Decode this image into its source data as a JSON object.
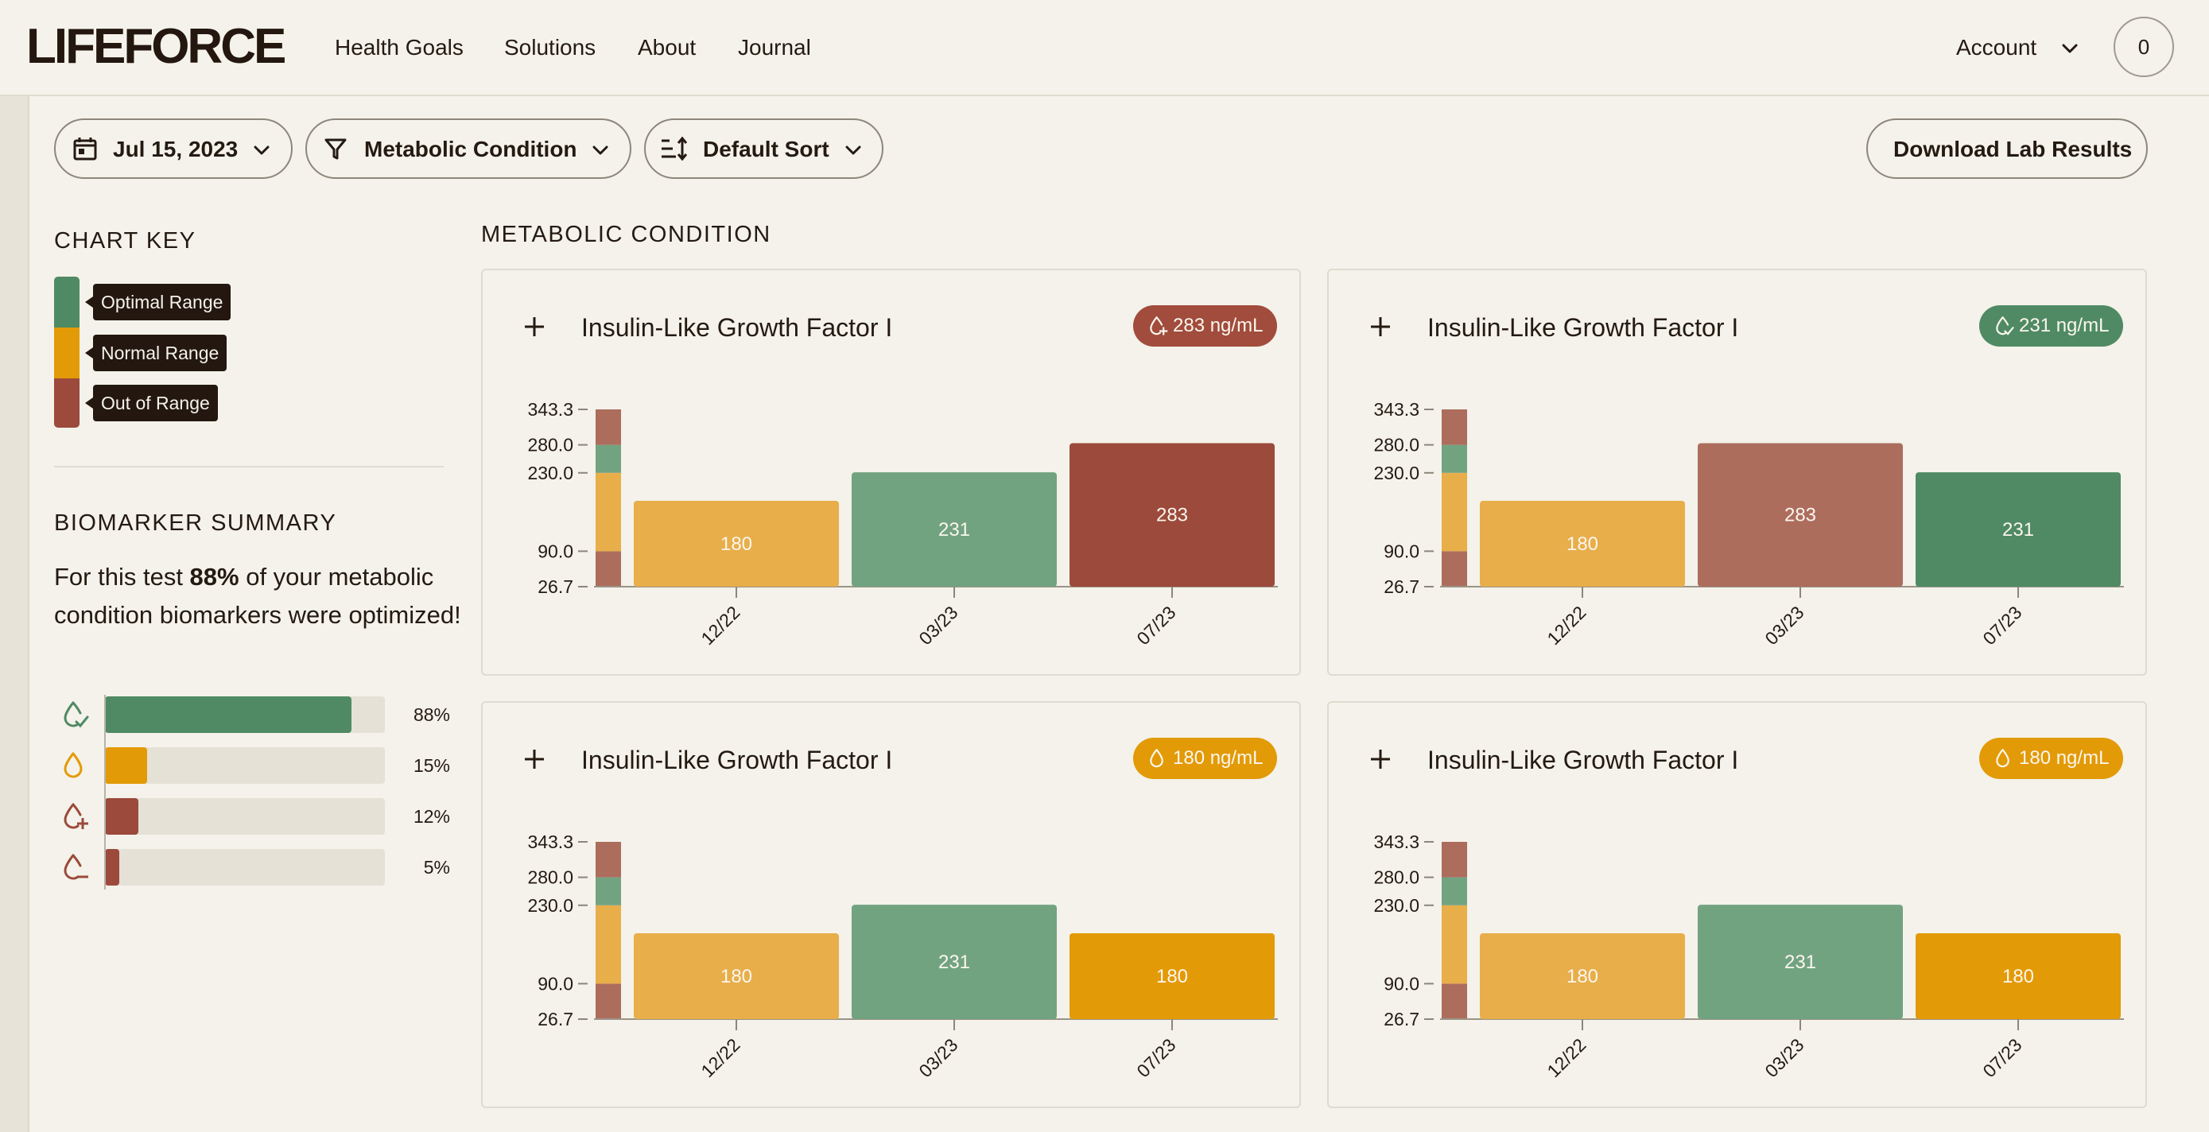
{
  "nav": {
    "logo": "LIFEFORCE",
    "links": [
      "Health Goals",
      "Solutions",
      "About",
      "Journal"
    ],
    "account_label": "Account",
    "cart_count": "0"
  },
  "toolbar": {
    "date_label": "Jul 15, 2023",
    "filter_label": "Metabolic Condition",
    "sort_label": "Default Sort",
    "download_label": "Download Lab Results"
  },
  "chart_key": {
    "title": "CHART KEY",
    "items": [
      {
        "label": "Optimal Range",
        "color": "#4f8a64"
      },
      {
        "label": "Normal Range",
        "color": "#e39a07"
      },
      {
        "label": "Out of Range",
        "color": "#9b4a3b"
      }
    ]
  },
  "summary": {
    "title": "BIOMARKER SUMMARY",
    "text_before": "For this test ",
    "percent": "88%",
    "text_after": " of your metabolic condition biomarkers were optimized!",
    "bars": [
      {
        "icon": "drop-check-icon",
        "value": 88,
        "label": "88%",
        "color": "#4f8a64"
      },
      {
        "icon": "drop-icon",
        "value": 15,
        "label": "15%",
        "color": "#e39a07"
      },
      {
        "icon": "drop-plus-icon",
        "value": 12,
        "label": "12%",
        "color": "#9b4a3b"
      },
      {
        "icon": "drop-minus-icon",
        "value": 5,
        "label": "5%",
        "color": "#9b4a3b"
      }
    ]
  },
  "section": {
    "title": "METABOLIC CONDITION"
  },
  "cards": [
    {
      "title": "Insulin-Like Growth Factor I",
      "badge": "283 ng/mL",
      "badge_color": "#a14c3c",
      "badge_icon": "drop-plus-icon"
    },
    {
      "title": "Insulin-Like Growth Factor I",
      "badge": "231 ng/mL",
      "badge_color": "#4f8a64",
      "badge_icon": "drop-check-icon"
    },
    {
      "title": "Insulin-Like Growth Factor I",
      "badge": "180 ng/mL",
      "badge_color": "#e39a07",
      "badge_icon": "drop-icon"
    },
    {
      "title": "Insulin-Like Growth Factor I",
      "badge": "180 ng/mL",
      "badge_color": "#e39a07",
      "badge_icon": "drop-icon"
    }
  ],
  "chart_data": [
    {
      "type": "bar",
      "categories": [
        "12/22",
        "03/23",
        "07/23"
      ],
      "values": [
        180,
        231,
        283
      ],
      "colors": [
        "#e8ae4a",
        "#72a381",
        "#9b4a3b"
      ],
      "yticks": [
        "343.3",
        "280.0",
        "230.0",
        "90.0",
        "26.7"
      ],
      "ylim": [
        26.7,
        343.3
      ],
      "range_bands": [
        {
          "from": 26.7,
          "to": 90.0,
          "color": "#ad6d5d"
        },
        {
          "from": 90.0,
          "to": 230.0,
          "color": "#e8ae4a"
        },
        {
          "from": 230.0,
          "to": 280.0,
          "color": "#72a381"
        },
        {
          "from": 280.0,
          "to": 343.3,
          "color": "#ad6d5d"
        }
      ]
    },
    {
      "type": "bar",
      "categories": [
        "12/22",
        "03/23",
        "07/23"
      ],
      "values": [
        180,
        283,
        231
      ],
      "colors": [
        "#e8ae4a",
        "#ad6d5d",
        "#4f8a64"
      ],
      "yticks": [
        "343.3",
        "280.0",
        "230.0",
        "90.0",
        "26.7"
      ],
      "ylim": [
        26.7,
        343.3
      ],
      "range_bands": [
        {
          "from": 26.7,
          "to": 90.0,
          "color": "#ad6d5d"
        },
        {
          "from": 90.0,
          "to": 230.0,
          "color": "#e8ae4a"
        },
        {
          "from": 230.0,
          "to": 280.0,
          "color": "#72a381"
        },
        {
          "from": 280.0,
          "to": 343.3,
          "color": "#ad6d5d"
        }
      ]
    },
    {
      "type": "bar",
      "categories": [
        "12/22",
        "03/23",
        "07/23"
      ],
      "values": [
        180,
        231,
        180
      ],
      "colors": [
        "#e8ae4a",
        "#72a381",
        "#e39a07"
      ],
      "yticks": [
        "343.3",
        "280.0",
        "230.0",
        "90.0",
        "26.7"
      ],
      "ylim": [
        26.7,
        343.3
      ],
      "range_bands": [
        {
          "from": 26.7,
          "to": 90.0,
          "color": "#ad6d5d"
        },
        {
          "from": 90.0,
          "to": 230.0,
          "color": "#e8ae4a"
        },
        {
          "from": 230.0,
          "to": 280.0,
          "color": "#72a381"
        },
        {
          "from": 280.0,
          "to": 343.3,
          "color": "#ad6d5d"
        }
      ]
    },
    {
      "type": "bar",
      "categories": [
        "12/22",
        "03/23",
        "07/23"
      ],
      "values": [
        180,
        231,
        180
      ],
      "colors": [
        "#e8ae4a",
        "#72a381",
        "#e39a07"
      ],
      "yticks": [
        "343.3",
        "280.0",
        "230.0",
        "90.0",
        "26.7"
      ],
      "ylim": [
        26.7,
        343.3
      ],
      "range_bands": [
        {
          "from": 26.7,
          "to": 90.0,
          "color": "#ad6d5d"
        },
        {
          "from": 90.0,
          "to": 230.0,
          "color": "#e8ae4a"
        },
        {
          "from": 230.0,
          "to": 280.0,
          "color": "#72a381"
        },
        {
          "from": 280.0,
          "to": 343.3,
          "color": "#ad6d5d"
        }
      ]
    }
  ]
}
